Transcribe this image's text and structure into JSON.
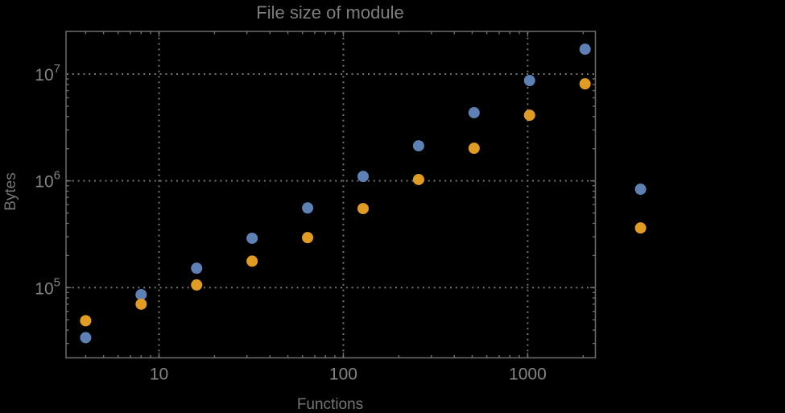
{
  "colors": {
    "background": "#000000",
    "frame": "#6e6e6e",
    "grid": "#757575",
    "tick": "#6e6e6e",
    "tick_label": "#848484",
    "series_blue": "#5e81b5",
    "series_orange": "#e19c24"
  },
  "chart_data": {
    "type": "scatter",
    "title": "File size of module",
    "xlabel": "Functions",
    "ylabel": "Bytes",
    "xscale": "log",
    "yscale": "log",
    "xlim": [
      3.13,
      2330
    ],
    "ylim": [
      22000,
      25100000
    ],
    "x_tick_labels": [
      10,
      100,
      1000
    ],
    "y_tick_exponents": [
      5,
      6,
      7
    ],
    "grid": "major gridlines only, dotted gray",
    "legend_position": "none",
    "x": [
      4,
      8,
      16,
      32,
      64,
      128,
      256,
      512,
      1024,
      2048,
      4096
    ],
    "series": [
      {
        "name": "blue",
        "color": "#5e81b5",
        "values": [
          34000,
          86000,
          152000,
          290000,
          558000,
          1100000,
          2130000,
          4350000,
          8700000,
          17100000,
          835000
        ]
      },
      {
        "name": "orange",
        "color": "#e19c24",
        "values": [
          49000,
          70000,
          106000,
          177000,
          294000,
          550000,
          1030000,
          2020000,
          4120000,
          8100000,
          362000
        ]
      }
    ],
    "note": "Last data points (x=4096) are rendered outside the right edge of the plot frame"
  }
}
